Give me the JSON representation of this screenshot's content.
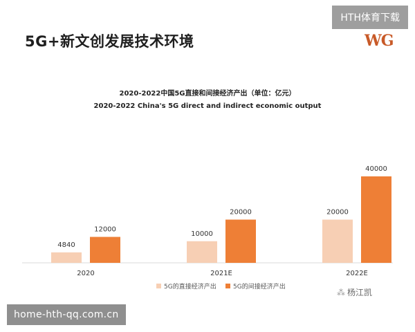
{
  "page": {
    "title": "5G+新文创发展技术环境",
    "logo_text": "WG",
    "watermark_top": "HTH体育下载",
    "watermark_bottom": "home-hth-qq.com.cn",
    "author": "杨江凯",
    "author_icon": "watermark-icon"
  },
  "chart_data": {
    "type": "bar",
    "title": "2020-2022中国5G直接和间接经济产出（单位：亿元）",
    "subtitle": "2020-2022 China's 5G direct and indirect economic output",
    "categories": [
      "2020",
      "2021E",
      "2022E"
    ],
    "series": [
      {
        "name": "5G的直接经济产出",
        "values": [
          4840,
          10000,
          20000
        ],
        "color": "#f7cfb4"
      },
      {
        "name": "5G的间接经济产出",
        "values": [
          12000,
          20000,
          40000
        ],
        "color": "#ee7f36"
      }
    ],
    "ylim": [
      0,
      40000
    ],
    "grid": false,
    "legend": "bottom-center",
    "data_labels": true
  }
}
